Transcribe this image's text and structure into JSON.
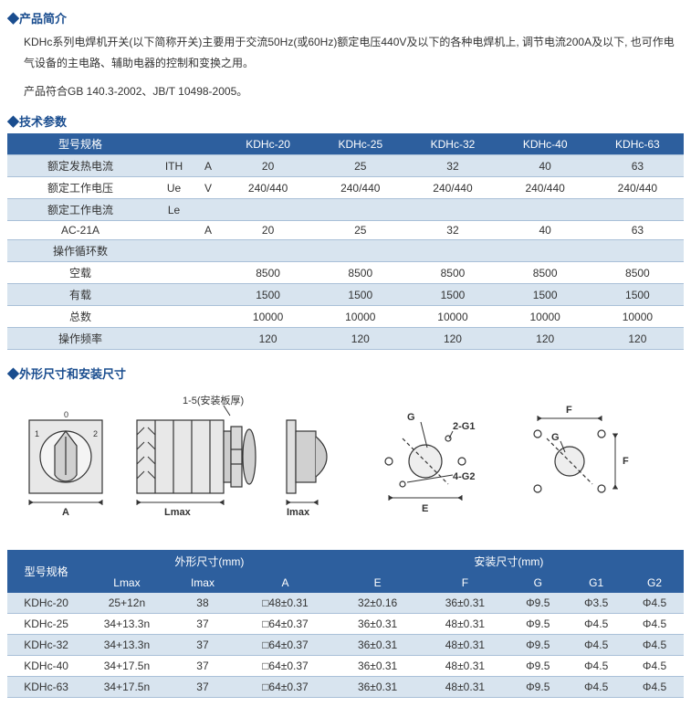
{
  "sections": {
    "intro_title": "产品简介",
    "tech_title": "技术参数",
    "dim_title": "外形尺寸和安装尺寸"
  },
  "intro": {
    "p1": "KDHc系列电焊机开关(以下简称开关)主要用于交流50Hz(或60Hz)额定电压440V及以下的各种电焊机上, 调节电流200A及以下, 也可作电气设备的主电路、辅助电器的控制和变换之用。",
    "p2": "产品符合GB 140.3-2002、JB/T 10498-2005。"
  },
  "tech": {
    "col_model": "型号规格",
    "models": [
      "KDHc-20",
      "KDHc-25",
      "KDHc-32",
      "KDHc-40",
      "KDHc-63"
    ],
    "rows": [
      {
        "label": "额定发热电流",
        "sym": "ITH",
        "unit": "A",
        "vals": [
          "20",
          "25",
          "32",
          "40",
          "63"
        ],
        "alt": true
      },
      {
        "label": "额定工作电压",
        "sym": "Ue",
        "unit": "V",
        "vals": [
          "240/440",
          "240/440",
          "240/440",
          "240/440",
          "240/440"
        ],
        "alt": false
      },
      {
        "label": "额定工作电流",
        "sym": "Le",
        "unit": "",
        "vals": [
          "",
          "",
          "",
          "",
          ""
        ],
        "alt": true
      },
      {
        "label": "AC-21A",
        "sym": "",
        "unit": "A",
        "vals": [
          "20",
          "25",
          "32",
          "40",
          "63"
        ],
        "alt": false
      },
      {
        "label": "操作循环数",
        "sym": "",
        "unit": "",
        "vals": [
          "",
          "",
          "",
          "",
          ""
        ],
        "alt": true
      },
      {
        "label": "空载",
        "sym": "",
        "unit": "",
        "vals": [
          "8500",
          "8500",
          "8500",
          "8500",
          "8500"
        ],
        "alt": false
      },
      {
        "label": "有载",
        "sym": "",
        "unit": "",
        "vals": [
          "1500",
          "1500",
          "1500",
          "1500",
          "1500"
        ],
        "alt": true
      },
      {
        "label": "总数",
        "sym": "",
        "unit": "",
        "vals": [
          "10000",
          "10000",
          "10000",
          "10000",
          "10000"
        ],
        "alt": false
      },
      {
        "label": "操作频率",
        "sym": "",
        "unit": "",
        "vals": [
          "120",
          "120",
          "120",
          "120",
          "120"
        ],
        "alt": true
      }
    ]
  },
  "diagram": {
    "panel_thickness": "1-5(安装板厚)",
    "A": "A",
    "Lmax": "Lmax",
    "Imax": "Imax",
    "E": "E",
    "F": "F",
    "G": "G",
    "G1": "2-G1",
    "G2": "4-G2",
    "knob_nums": [
      "1",
      "0",
      "2"
    ]
  },
  "dim": {
    "col_model": "型号规格",
    "outer_header": "外形尺寸(mm)",
    "install_header": "安装尺寸(mm)",
    "cols_outer": [
      "Lmax",
      "Imax",
      "A"
    ],
    "cols_install": [
      "E",
      "F",
      "G",
      "G1",
      "G2"
    ],
    "rows": [
      {
        "model": "KDHc-20",
        "Lmax": "25+12n",
        "Imax": "38",
        "A": "□48±0.31",
        "E": "32±0.16",
        "F": "36±0.31",
        "G": "Φ9.5",
        "G1": "Φ3.5",
        "G2": "Φ4.5",
        "alt": true
      },
      {
        "model": "KDHc-25",
        "Lmax": "34+13.3n",
        "Imax": "37",
        "A": "□64±0.37",
        "E": "36±0.31",
        "F": "48±0.31",
        "G": "Φ9.5",
        "G1": "Φ4.5",
        "G2": "Φ4.5",
        "alt": false
      },
      {
        "model": "KDHc-32",
        "Lmax": "34+13.3n",
        "Imax": "37",
        "A": "□64±0.37",
        "E": "36±0.31",
        "F": "48±0.31",
        "G": "Φ9.5",
        "G1": "Φ4.5",
        "G2": "Φ4.5",
        "alt": true
      },
      {
        "model": "KDHc-40",
        "Lmax": "34+17.5n",
        "Imax": "37",
        "A": "□64±0.37",
        "E": "36±0.31",
        "F": "48±0.31",
        "G": "Φ9.5",
        "G1": "Φ4.5",
        "G2": "Φ4.5",
        "alt": false
      },
      {
        "model": "KDHc-63",
        "Lmax": "34+17.5n",
        "Imax": "37",
        "A": "□64±0.37",
        "E": "36±0.31",
        "F": "48±0.31",
        "G": "Φ9.5",
        "G1": "Φ4.5",
        "G2": "Φ4.5",
        "alt": true
      }
    ]
  },
  "style": {
    "header_bg": "#2d5f9e",
    "alt_bg": "#d8e4ef",
    "border": "#a9c0d8",
    "title_color": "#1a4d8f"
  }
}
